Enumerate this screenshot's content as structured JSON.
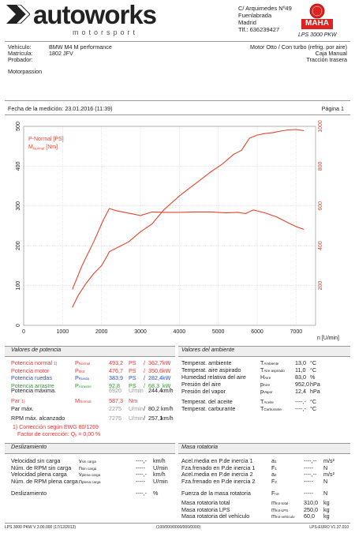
{
  "header": {
    "logo_main": "autoworks",
    "logo_sub": "motorsport",
    "address": [
      "C/ Arquimedes Nº49",
      "Fuenlabrada",
      "Madrid",
      "Tlf.: 636239427"
    ],
    "maha_label": "LPS 3000 PKW",
    "maha_logo": "MAHA"
  },
  "vehicle": {
    "vehiculo_label": "Vehículo:",
    "vehiculo": "BMW M4 M performance",
    "matricula_label": "Matrícula:",
    "matricula": "1802 JFV",
    "probador_label": "Probador:",
    "engine": "Motor Otto / Con turbo (refrig. por aire)",
    "gearbox": "Caja Manual",
    "traction": "Tracción trasera",
    "note": "Motorpassion"
  },
  "measure": {
    "date": "Fecha de la medición: 23.01.2016 (11:39)",
    "page": "Página 1"
  },
  "chart_data": {
    "type": "line",
    "legend": [
      "P-Normal [PS]",
      "M_Normal [Nm]"
    ],
    "xlabel": "n [U/min]",
    "xlim": [
      0,
      7500
    ],
    "ylim_left": [
      0,
      500
    ],
    "ylim_right": [
      0,
      1000
    ],
    "x_ticks": [
      "0",
      "1000",
      "2000",
      "3000",
      "4000",
      "5000",
      "6000",
      "7000"
    ],
    "y_left_ticks": [
      "0",
      "100",
      "200",
      "300",
      "400",
      "500"
    ],
    "y_right_ticks": [
      "200",
      "400",
      "600",
      "800",
      "1000"
    ],
    "series": [
      {
        "name": "P-Normal [PS]",
        "axis": "left",
        "color": "#e8422c",
        "x": [
          1250,
          1400,
          1600,
          1800,
          2000,
          2150,
          2200,
          2400,
          2700,
          3000,
          3300,
          3600,
          4000,
          4400,
          4800,
          5100,
          5400,
          5600,
          5800,
          6000,
          6200,
          6400,
          6600,
          6800,
          7000,
          7200
        ],
        "y": [
          45,
          75,
          105,
          130,
          150,
          175,
          185,
          195,
          210,
          235,
          255,
          290,
          325,
          355,
          385,
          405,
          430,
          440,
          470,
          478,
          482,
          484,
          488,
          491,
          492,
          489
        ]
      },
      {
        "name": "M_Normal [Nm]",
        "axis": "right",
        "color": "#e8422c",
        "x": [
          1250,
          1500,
          1800,
          2050,
          2200,
          2400,
          2800,
          3000,
          3300,
          3600,
          4000,
          4400,
          4800,
          5200,
          5500,
          5700,
          5900,
          6200,
          6500,
          6800,
          7000,
          7200
        ],
        "y": [
          180,
          300,
          420,
          530,
          587,
          575,
          560,
          552,
          570,
          568,
          568,
          570,
          570,
          565,
          568,
          562,
          580,
          565,
          545,
          515,
          496,
          482
        ]
      }
    ]
  },
  "potencia": {
    "title": "Valores de potencia",
    "rows": [
      {
        "label": "Potencia normal",
        "mark": "1)",
        "sym": "P",
        "subsym": "Normal",
        "v1": "493,2",
        "u1": "PS",
        "v2": "362,7",
        "u2": "kW",
        "cls": "red"
      },
      {
        "label": "Potencia motor",
        "mark": "",
        "sym": "P",
        "subsym": "Mot",
        "v1": "476,7",
        "u1": "PS",
        "v2": "350,6",
        "u2": "kW",
        "cls": "red"
      },
      {
        "label": "Potencia ruedas",
        "mark": "",
        "sym": "P",
        "subsym": "Rueda",
        "v1": "383,9",
        "u1": "PS",
        "v2": "282,4",
        "u2": "kW",
        "cls": "blue"
      },
      {
        "label": "Potencia arrastre",
        "mark": "",
        "sym": "P",
        "subsym": "Arrastre",
        "v1": "92,8",
        "u1": "PS",
        "v2": "68,3",
        "u2": "kW",
        "cls": "green"
      }
    ],
    "maxima_label": "Potencia máxima.",
    "maxima_rpm": "6920",
    "maxima_rpm_unit": "U/min",
    "maxima_v": "244,4",
    "maxima_u": "km/h",
    "par_label": "Par",
    "par_mark": "1)",
    "par_sym": "M",
    "par_subsym": "Normal",
    "par_v": "587,3",
    "par_u": "Nm",
    "parmax_label": "Par máx.",
    "parmax_rpm": "2275",
    "parmax_rpm_unit": "U/min",
    "parmax_v": "80,2",
    "parmax_u": "km/h",
    "rpmmax_label": "RPM máx. alcanzado",
    "rpmmax_rpm": "7275",
    "rpmmax_rpm_unit": "U/min",
    "rpmmax_v": "257,1",
    "rpmmax_u": "km/h",
    "corr1": "1) Corrección según EWG 80/1269",
    "corr2_label": "Factor de corrección:",
    "corr2_sym": "Q",
    "corr2_sub": "y",
    "corr2_v": "= 0,00 %"
  },
  "ambiente": {
    "title": "Valores del ambiente",
    "rows": [
      {
        "label": "Temperat. ambiente",
        "sym": "T",
        "sub": "Ambiente",
        "v": "13,0",
        "u": "°C"
      },
      {
        "label": "Temperat. aire aspirado",
        "sym": "T",
        "sub": "Aire aspirado",
        "v": "11,0",
        "u": "°C"
      },
      {
        "label": "Humedad relativa del aire",
        "sym": "H",
        "sub": "Aire",
        "v": "83,0",
        "u": "%"
      },
      {
        "label": "Presión del aire",
        "sym": "p",
        "sub": "Aire",
        "v": "952,0",
        "u": "hPa"
      },
      {
        "label": "Presión del vapor",
        "sym": "p",
        "sub": "Vapor",
        "v": "12,4",
        "u": "hPa"
      }
    ],
    "rows2": [
      {
        "label": "Temperat. del aceite",
        "sym": "T",
        "sub": "Aceite",
        "v": "----,-",
        "u": "°C"
      },
      {
        "label": "Temperat. carburante",
        "sym": "T",
        "sub": "Carburante",
        "v": "----,-",
        "u": "°C"
      }
    ]
  },
  "deslizamiento": {
    "title": "Deslizamiento",
    "rows": [
      {
        "label": "Velocidad sin carga",
        "sym": "v",
        "sub": "sin carga",
        "v": "----,-",
        "u": "km/h"
      },
      {
        "label": "Núm. de RPM sin carga",
        "sym": "n",
        "sub": "sin carga",
        "v": "-----",
        "u": "U/min"
      },
      {
        "label": "Velocidad plena carga",
        "sym": "v",
        "sub": "plena carga",
        "v": "----,-",
        "u": "km/h"
      },
      {
        "label": "Núm. de RPM plena carga",
        "sym": "n",
        "sub": "plena carga",
        "v": "-----",
        "u": "U/min"
      }
    ],
    "desl_label": "Deslizamiento",
    "desl_v": "----,-",
    "desl_u": "%"
  },
  "masa": {
    "title": "Masa rotatoria",
    "rows": [
      {
        "label": "Acel.media en P.de inercia 1",
        "sym": "a",
        "sub": "1",
        "v": "----,--",
        "u": "m/s²"
      },
      {
        "label": "Fza.frenado en P.de inercia 1",
        "sym": "F",
        "sub": "1",
        "v": "-----",
        "u": "N"
      },
      {
        "label": "Acel.media en P.de inercia 2",
        "sym": "a",
        "sub": "2",
        "v": "----,--",
        "u": "m/s²"
      },
      {
        "label": "Fza.frenado en P.de inercia 2",
        "sym": "F",
        "sub": "2",
        "v": "-----",
        "u": "N"
      }
    ],
    "fuerza_label": "Fuerza de la masa rotatoria",
    "fuerza_sym": "F",
    "fuerza_sub": "rot",
    "fuerza_v": "-----",
    "fuerza_u": "N",
    "rows2": [
      {
        "label": "Masa rotatoria total",
        "sym": "m",
        "sub": "rot-total",
        "v": "310,0",
        "u": "kg"
      },
      {
        "label": "Masa rotatoria LPS",
        "sym": "m",
        "sub": "rot-LPS",
        "v": "250,0",
        "u": "kg"
      },
      {
        "label": "Masa rotatoria del vehículo",
        "sym": "m",
        "sub": "rot-vehículo",
        "v": "60,0",
        "u": "kg"
      }
    ]
  },
  "footer": {
    "left": "LPS 3000 PKW V 3.00.000 (17/12/2013)",
    "mid": "(100/000/0000/000/0000)",
    "right": "LPS-EURO V1.37.010"
  }
}
